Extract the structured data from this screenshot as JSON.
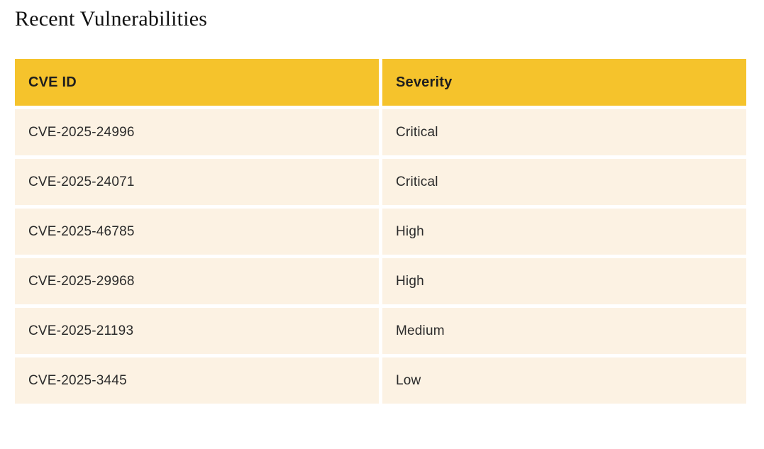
{
  "page": {
    "title": "Recent Vulnerabilities"
  },
  "table": {
    "columns": [
      {
        "label": "CVE ID"
      },
      {
        "label": "Severity"
      }
    ],
    "rows": [
      {
        "cve_id": "CVE-2025-24996",
        "severity": "Critical"
      },
      {
        "cve_id": "CVE-2025-24071",
        "severity": "Critical"
      },
      {
        "cve_id": "CVE-2025-46785",
        "severity": "High"
      },
      {
        "cve_id": "CVE-2025-29968",
        "severity": "High"
      },
      {
        "cve_id": "CVE-2025-21193",
        "severity": "Medium"
      },
      {
        "cve_id": "CVE-2025-3445",
        "severity": "Low"
      }
    ]
  },
  "colors": {
    "header_bg": "#F5C32C",
    "row_bg": "#FCF2E3",
    "header_text": "#1E1E1E",
    "body_text": "#2B2B2B",
    "title_text": "#111111",
    "page_bg": "#FFFFFF"
  }
}
